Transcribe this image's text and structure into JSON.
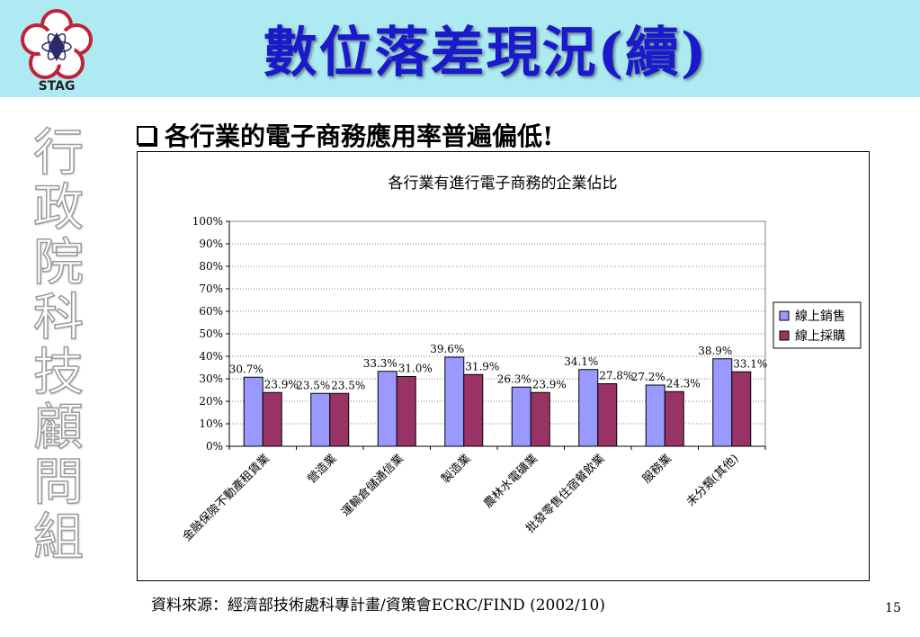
{
  "slide": {
    "logo_text": "STAG",
    "title": "數位落差現況(續)",
    "sidebar_chars": [
      "行",
      "政",
      "院",
      "科",
      "技",
      "顧",
      "問",
      "組"
    ],
    "bullet_text": "各行業的電子商務應用率普遍偏低!",
    "source": "資料來源：經濟部技術處科專計畫/資策會ECRC/FIND (2002/10)",
    "page_number": "15"
  },
  "colors": {
    "header_bg": "#aeeaf2",
    "title": "#1a1acc",
    "series_sales": "#9999ff",
    "series_purchase": "#993366"
  },
  "chart_data": {
    "type": "bar",
    "title": "各行業有進行電子商務的企業佔比",
    "categories": [
      "金融保險不動產租賃業",
      "營造業",
      "運輸倉儲通信業",
      "製造業",
      "農林水電礦業",
      "批發零售住宿餐飲業",
      "服務業",
      "未分類(其他)"
    ],
    "series": [
      {
        "name": "線上銷售",
        "values": [
          30.7,
          23.5,
          33.3,
          39.6,
          26.3,
          34.1,
          27.2,
          38.9
        ],
        "labels": [
          "30.7%",
          "23.5%",
          "33.3%",
          "39.6%",
          "26.3%",
          "34.1%",
          "27.2%",
          "38.9%"
        ]
      },
      {
        "name": "線上採購",
        "values": [
          23.9,
          23.5,
          31.0,
          31.9,
          23.9,
          27.8,
          24.3,
          33.1
        ],
        "labels": [
          "23.9%",
          "23.5%",
          "31.0%",
          "31.9%",
          "23.9%",
          "27.8%",
          "24.3%",
          "33.1%"
        ]
      }
    ],
    "ylim": [
      0,
      100
    ],
    "yticks": [
      "0%",
      "10%",
      "20%",
      "30%",
      "40%",
      "50%",
      "60%",
      "70%",
      "80%",
      "90%",
      "100%"
    ],
    "grid": true,
    "legend_position": "right"
  }
}
